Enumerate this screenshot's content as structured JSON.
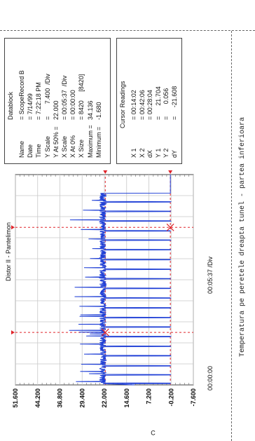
{
  "page": {
    "caption": "Temperatura pe peretele dreapta tunel - partea inferioara",
    "side_marker": "C"
  },
  "datablock": {
    "title": "Datablock",
    "rows": [
      {
        "label": "Name",
        "value": "= ScopeRecord B"
      },
      {
        "label": "Date",
        "value": "= 7/14/99"
      },
      {
        "label": "Time",
        "value": "= 7:22:18 PM"
      },
      {
        "label": "Y Scale",
        "value": "=       7.400  /Div"
      },
      {
        "label": "Y At 50% =",
        "value": "22.000"
      },
      {
        "label": "X Scale",
        "value": "= 00:05:37  /Div"
      },
      {
        "label": "X At 0%",
        "value": "= 00:00:00"
      },
      {
        "label": "X Size",
        "value": "= 8420     [8420]"
      },
      {
        "label": "Maximum =",
        "value": "34.136"
      },
      {
        "label": "Minimum =",
        "value": "-1.680"
      }
    ]
  },
  "cursor": {
    "title": "Cursor Readings",
    "rows": [
      {
        "label": "X 1",
        "value": "= 00:14:02"
      },
      {
        "label": "X 2",
        "value": "= 00:42:06"
      },
      {
        "label": "dX",
        "value": "= 00:28:04"
      },
      {
        "label": "Y 1",
        "value": "=      21.704"
      },
      {
        "label": "Y 2",
        "value": "=       0.056"
      },
      {
        "label": "dY",
        "value": "=     -21.608"
      }
    ]
  },
  "chart_data": {
    "type": "line",
    "title": "Distor II - Pantelimon",
    "xlabel": "00:05:37 /Div",
    "x_start_label": "00:00:00",
    "x_divisions": 10,
    "x_span_minutes": 56.2,
    "ylim": [
      -7.6,
      51.6
    ],
    "y_tick_labels": [
      "51.600",
      "44.200",
      "36.800",
      "29.400",
      "22.000",
      "14.600",
      "7.200",
      "-0.200",
      "-7.600"
    ],
    "y_ticks": [
      51.6,
      44.2,
      36.8,
      29.4,
      22.0,
      14.6,
      7.2,
      -0.2,
      -7.6
    ],
    "grid": true,
    "line_color": "#1f3fd6",
    "cursor_color": "#e0242a",
    "cursors": [
      {
        "x_minutes": 14.03,
        "y": 21.704
      },
      {
        "x_minutes": 42.1,
        "y": 0.056
      }
    ],
    "high_level": 22.5,
    "low_level": 0.05,
    "max": 34.136,
    "min": -1.68,
    "drops_minutes": [
      0.35,
      2.6,
      5.0,
      7.7,
      10.2,
      12.8,
      15.4,
      17.9,
      20.5,
      23.1,
      25.7,
      28.3,
      30.8,
      33.4,
      36.0,
      38.6,
      41.1,
      43.7,
      46.3,
      48.8
    ],
    "low_from_minutes": 51.2,
    "spike_minutes": [
      0.9,
      3.0,
      3.6,
      5.5,
      8.2,
      10.9,
      13.1,
      13.6,
      14.1,
      14.6,
      16.2,
      18.3,
      18.7,
      21.0,
      23.6,
      26.1,
      28.8,
      31.3,
      33.8,
      36.4,
      39.0,
      41.5,
      44.1,
      46.7,
      49.3
    ]
  }
}
